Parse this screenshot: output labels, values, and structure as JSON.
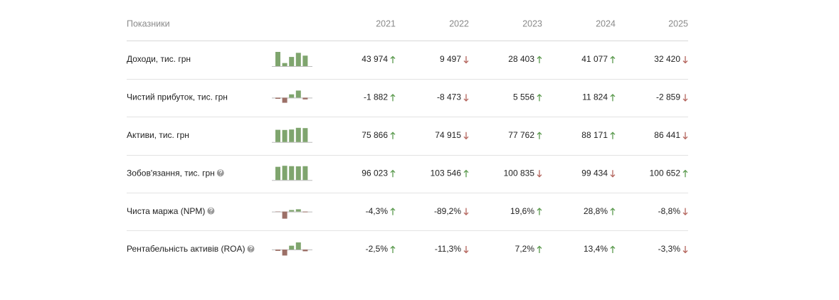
{
  "table": {
    "header": {
      "label": "Показники",
      "years": [
        "2021",
        "2022",
        "2023",
        "2024",
        "2025"
      ]
    },
    "colors": {
      "up": "#5b9a4e",
      "down": "#b4645c",
      "bar_positive": "#7fa56e",
      "bar_negative": "#9c7067"
    },
    "rows": [
      {
        "label": "Доходи, тис. грн",
        "help": false,
        "values": [
          43974,
          9497,
          28403,
          41077,
          32420
        ],
        "value_labels": [
          "43 974",
          "9 497",
          "28 403",
          "41 077",
          "32 420"
        ],
        "trends": [
          "up",
          "down",
          "up",
          "up",
          "down"
        ]
      },
      {
        "label": "Чистий прибуток, тис. грн",
        "help": false,
        "values": [
          -1882,
          -8473,
          5556,
          11824,
          -2859
        ],
        "value_labels": [
          "-1 882",
          "-8 473",
          "5 556",
          "11 824",
          "-2 859"
        ],
        "trends": [
          "up",
          "down",
          "up",
          "up",
          "down"
        ]
      },
      {
        "label": "Активи, тис. грн",
        "help": false,
        "values": [
          75866,
          74915,
          77762,
          88171,
          86441
        ],
        "value_labels": [
          "75 866",
          "74 915",
          "77 762",
          "88 171",
          "86 441"
        ],
        "trends": [
          "up",
          "down",
          "up",
          "up",
          "down"
        ]
      },
      {
        "label": "Зобов'язання, тис. грн",
        "help": true,
        "values": [
          96023,
          103546,
          100835,
          99434,
          100652
        ],
        "value_labels": [
          "96 023",
          "103 546",
          "100 835",
          "99 434",
          "100 652"
        ],
        "trends": [
          "up",
          "up",
          "down",
          "down",
          "up"
        ]
      },
      {
        "label": "Чиста маржа (NPM)",
        "help": true,
        "values": [
          -4.3,
          -89.2,
          19.6,
          28.8,
          -8.8
        ],
        "value_labels": [
          "-4,3%",
          "-89,2%",
          "19,6%",
          "28,8%",
          "-8,8%"
        ],
        "trends": [
          "up",
          "down",
          "up",
          "up",
          "down"
        ]
      },
      {
        "label": "Рентабельність активів (ROA)",
        "help": true,
        "values": [
          -2.5,
          -11.3,
          7.2,
          13.4,
          -3.3
        ],
        "value_labels": [
          "-2,5%",
          "-11,3%",
          "7,2%",
          "13,4%",
          "-3,3%"
        ],
        "trends": [
          "up",
          "down",
          "up",
          "up",
          "down"
        ]
      }
    ]
  }
}
